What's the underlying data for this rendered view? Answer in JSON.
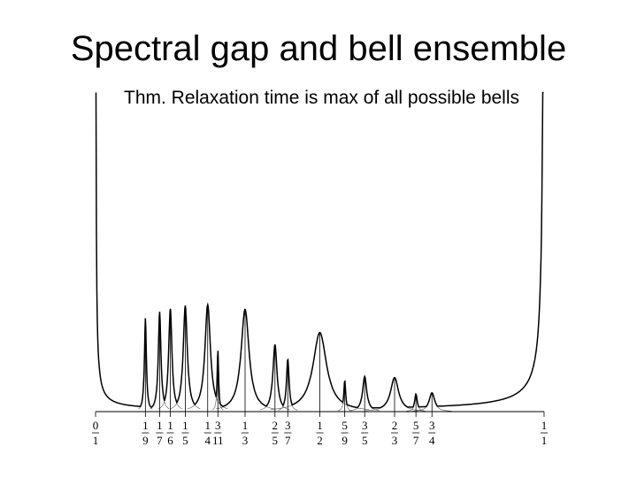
{
  "header": {
    "title": "Spectral gap and bell ensemble",
    "subtitle": "Thm.  Relaxation time is max of all possible bells"
  },
  "figure": {
    "fractions": [
      {
        "numerator": 0,
        "denominator": 1
      },
      {
        "numerator": 1,
        "denominator": 9
      },
      {
        "numerator": 1,
        "denominator": 7
      },
      {
        "numerator": 1,
        "denominator": 6
      },
      {
        "numerator": 1,
        "denominator": 5
      },
      {
        "numerator": 1,
        "denominator": 4
      },
      {
        "numerator": 3,
        "denominator": 11
      },
      {
        "numerator": 1,
        "denominator": 3
      },
      {
        "numerator": 2,
        "denominator": 5
      },
      {
        "numerator": 3,
        "denominator": 7
      },
      {
        "numerator": 1,
        "denominator": 2
      },
      {
        "numerator": 5,
        "denominator": 9
      },
      {
        "numerator": 3,
        "denominator": 5
      },
      {
        "numerator": 2,
        "denominator": 3
      },
      {
        "numerator": 5,
        "denominator": 7
      },
      {
        "numerator": 3,
        "denominator": 4
      },
      {
        "numerator": 1,
        "denominator": 1
      }
    ]
  }
}
